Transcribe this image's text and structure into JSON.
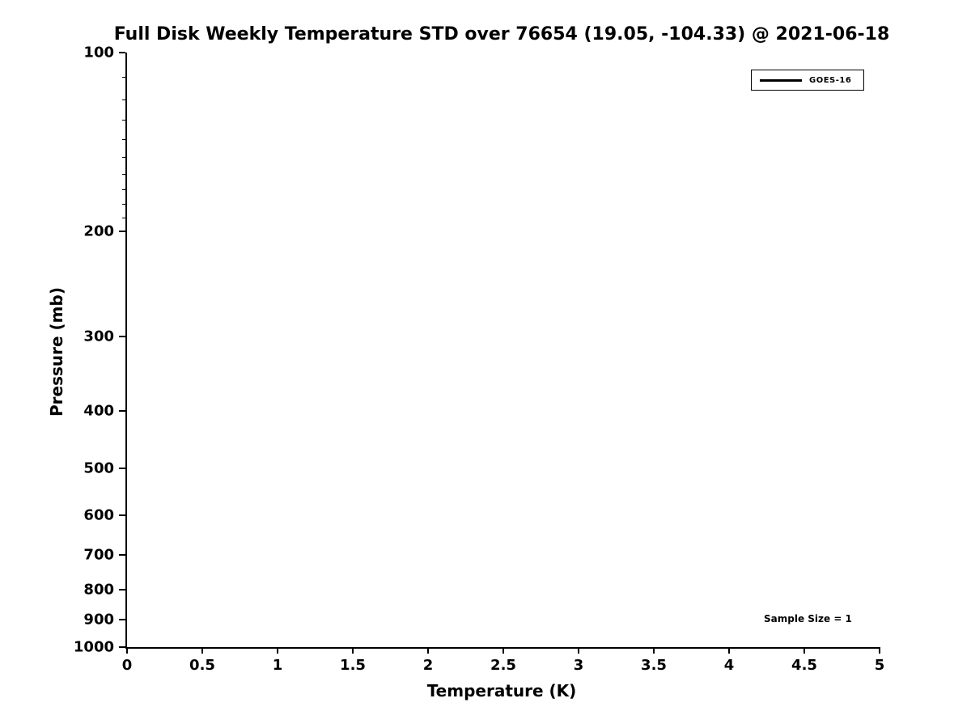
{
  "title": "Full Disk Weekly Temperature STD over 76654 (19.05, -104.33) @ 2021-06-18",
  "legend": {
    "label": "GOES-16"
  },
  "annotation": {
    "sample_size": "Sample Size = 1"
  },
  "chart_data": {
    "type": "line",
    "title": "Full Disk Weekly Temperature STD over 76654 (19.05, -104.33) @ 2021-06-18",
    "xlabel": "Temperature (K)",
    "ylabel": "Pressure (mb)",
    "xlim": [
      0,
      5
    ],
    "ylim": [
      1000,
      100
    ],
    "yscale": "log",
    "y_axis_inverted": true,
    "grid": false,
    "xticks": [
      0,
      0.5,
      1,
      1.5,
      2,
      2.5,
      3,
      3.5,
      4,
      4.5,
      5
    ],
    "xtick_labels": [
      "0",
      "0.5",
      "1",
      "1.5",
      "2",
      "2.5",
      "3",
      "3.5",
      "4",
      "4.5",
      "5"
    ],
    "yticks": [
      100,
      200,
      300,
      400,
      500,
      600,
      700,
      800,
      900,
      1000
    ],
    "ytick_labels": [
      "100",
      "200",
      "300",
      "400",
      "500",
      "600",
      "700",
      "800",
      "900",
      "1000"
    ],
    "y_minor_ticks": [
      110,
      120,
      130,
      140,
      150,
      160,
      170,
      180,
      190
    ],
    "series": [
      {
        "name": "GOES-16",
        "color": "#000000",
        "x": [],
        "y": [],
        "note": "no data curve is visible inside the axes (empty plot)"
      }
    ],
    "legend": {
      "position": "top-right",
      "entries": [
        "GOES-16"
      ]
    },
    "annotations": [
      {
        "text": "Sample Size = 1",
        "position": "bottom-right"
      }
    ]
  }
}
